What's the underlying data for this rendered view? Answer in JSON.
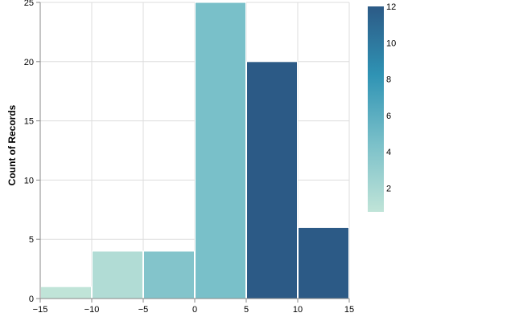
{
  "chart_data": {
    "type": "bar",
    "subtype": "histogram",
    "ylabel": "Count of Records",
    "xlim": [
      -15,
      15
    ],
    "ylim": [
      0,
      25
    ],
    "x_ticks": [
      "−15",
      "−10",
      "−5",
      "0",
      "5",
      "10",
      "15"
    ],
    "y_ticks": [
      "0",
      "5",
      "10",
      "15",
      "20",
      "25"
    ],
    "grid": true,
    "bins": [
      {
        "x0": -15,
        "x1": -10,
        "count": 1,
        "color_value": 0.7
      },
      {
        "x0": -10,
        "x1": -5,
        "count": 4,
        "color_value": 1.5
      },
      {
        "x0": -5,
        "x1": 0,
        "count": 4,
        "color_value": 4.0
      },
      {
        "x0": 0,
        "x1": 5,
        "count": 25,
        "color_value": 4.5
      },
      {
        "x0": 5,
        "x1": 10,
        "count": 20,
        "color_value": 12
      },
      {
        "x0": 10,
        "x1": 15,
        "count": 6,
        "color_value": 12
      }
    ],
    "color_scale": {
      "domain": [
        0.7,
        12
      ],
      "ticks": [
        "2",
        "4",
        "6",
        "8",
        "10",
        "12"
      ],
      "range": [
        "#c0e4d8",
        "#7ac0c9",
        "#2f93b4",
        "#2c5a86"
      ],
      "legend_position": "right"
    }
  }
}
